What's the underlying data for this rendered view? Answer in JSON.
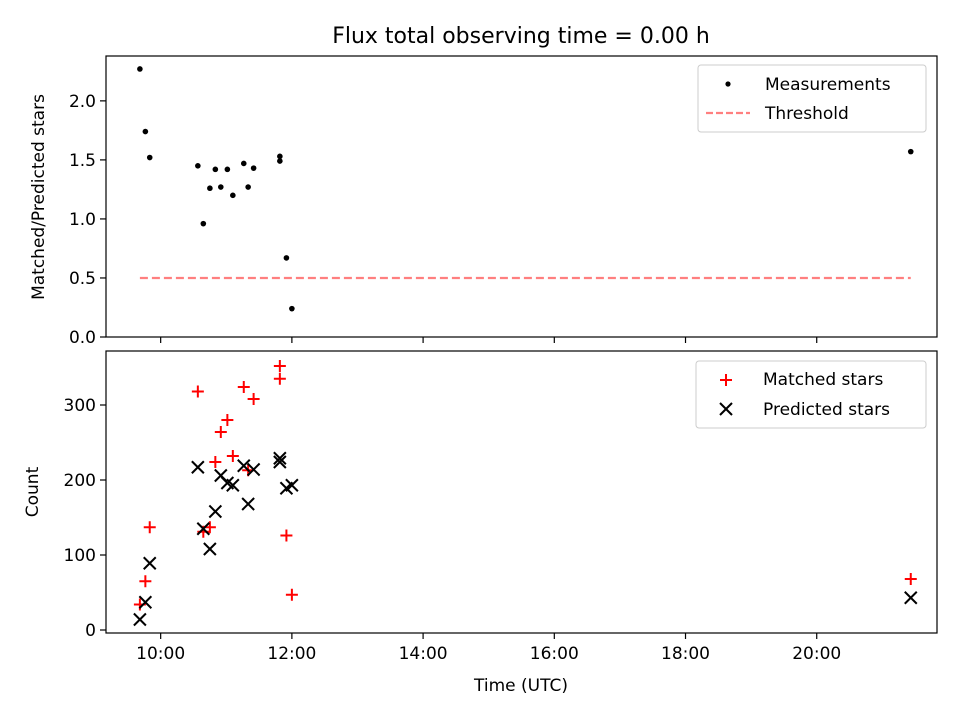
{
  "title": "Flux total observing time = 0.00 h",
  "colors": {
    "measurement": "#000000",
    "threshold": "#ff7f7f",
    "matched": "#ff0000",
    "predicted": "#000000"
  },
  "x_axis": {
    "label": "Time (UTC)",
    "ticks": [
      "10:00",
      "12:00",
      "14:00",
      "16:00",
      "18:00",
      "20:00"
    ]
  },
  "chart_data": [
    {
      "type": "scatter",
      "ylabel": "Matched/Predicted stars",
      "xlim": [
        "09:10",
        "21:50"
      ],
      "ylim": [
        0,
        2.38
      ],
      "yticks": [
        0.0,
        0.5,
        1.0,
        1.5,
        2.0
      ],
      "ytick_labels": [
        "0.0",
        "0.5",
        "1.0",
        "1.5",
        "2.0"
      ],
      "legend": {
        "placement": "top-right",
        "entries": [
          "Measurements",
          "Threshold"
        ]
      },
      "series": [
        {
          "name": "Measurements",
          "marker": "dot",
          "points": [
            {
              "x": "09:41",
              "y": 2.27
            },
            {
              "x": "09:46",
              "y": 1.74
            },
            {
              "x": "09:50",
              "y": 1.52
            },
            {
              "x": "10:34",
              "y": 1.45
            },
            {
              "x": "10:39",
              "y": 0.96
            },
            {
              "x": "10:45",
              "y": 1.26
            },
            {
              "x": "10:50",
              "y": 1.42
            },
            {
              "x": "10:55",
              "y": 1.27
            },
            {
              "x": "11:01",
              "y": 1.42
            },
            {
              "x": "11:06",
              "y": 1.2
            },
            {
              "x": "11:16",
              "y": 1.47
            },
            {
              "x": "11:20",
              "y": 1.27
            },
            {
              "x": "11:25",
              "y": 1.43
            },
            {
              "x": "11:49",
              "y": 1.53
            },
            {
              "x": "11:49",
              "y": 1.49
            },
            {
              "x": "11:55",
              "y": 0.67
            },
            {
              "x": "12:00",
              "y": 0.24
            },
            {
              "x": "21:26",
              "y": 1.57
            }
          ]
        },
        {
          "name": "Threshold",
          "marker": "dashed-line",
          "points": [
            {
              "x": "09:41",
              "y": 0.5
            },
            {
              "x": "21:26",
              "y": 0.5
            }
          ]
        }
      ]
    },
    {
      "type": "scatter",
      "ylabel": "Count",
      "xlabel": "Time (UTC)",
      "xlim": [
        "09:10",
        "21:50"
      ],
      "ylim": [
        -4,
        372
      ],
      "yticks": [
        0,
        100,
        200,
        300
      ],
      "ytick_labels": [
        "0",
        "100",
        "200",
        "300"
      ],
      "legend": {
        "placement": "top-right",
        "entries": [
          "Matched stars",
          "Predicted stars"
        ]
      },
      "series": [
        {
          "name": "Matched stars",
          "marker": "plus",
          "points": [
            {
              "x": "09:41",
              "y": 34
            },
            {
              "x": "09:46",
              "y": 65
            },
            {
              "x": "09:50",
              "y": 137
            },
            {
              "x": "10:34",
              "y": 318
            },
            {
              "x": "10:39",
              "y": 131
            },
            {
              "x": "10:45",
              "y": 137
            },
            {
              "x": "10:50",
              "y": 224
            },
            {
              "x": "10:55",
              "y": 264
            },
            {
              "x": "11:01",
              "y": 280
            },
            {
              "x": "11:06",
              "y": 232
            },
            {
              "x": "11:16",
              "y": 324
            },
            {
              "x": "11:20",
              "y": 213
            },
            {
              "x": "11:25",
              "y": 308
            },
            {
              "x": "11:49",
              "y": 352
            },
            {
              "x": "11:49",
              "y": 335
            },
            {
              "x": "11:55",
              "y": 126
            },
            {
              "x": "12:00",
              "y": 47
            },
            {
              "x": "21:26",
              "y": 68
            }
          ]
        },
        {
          "name": "Predicted stars",
          "marker": "x",
          "points": [
            {
              "x": "09:41",
              "y": 14
            },
            {
              "x": "09:46",
              "y": 37
            },
            {
              "x": "09:50",
              "y": 89
            },
            {
              "x": "10:34",
              "y": 217
            },
            {
              "x": "10:39",
              "y": 135
            },
            {
              "x": "10:45",
              "y": 108
            },
            {
              "x": "10:50",
              "y": 158
            },
            {
              "x": "10:55",
              "y": 206
            },
            {
              "x": "11:01",
              "y": 196
            },
            {
              "x": "11:06",
              "y": 193
            },
            {
              "x": "11:16",
              "y": 219
            },
            {
              "x": "11:20",
              "y": 168
            },
            {
              "x": "11:25",
              "y": 214
            },
            {
              "x": "11:49",
              "y": 229
            },
            {
              "x": "11:49",
              "y": 224
            },
            {
              "x": "11:55",
              "y": 189
            },
            {
              "x": "12:00",
              "y": 193
            },
            {
              "x": "21:26",
              "y": 43
            }
          ]
        }
      ]
    }
  ]
}
